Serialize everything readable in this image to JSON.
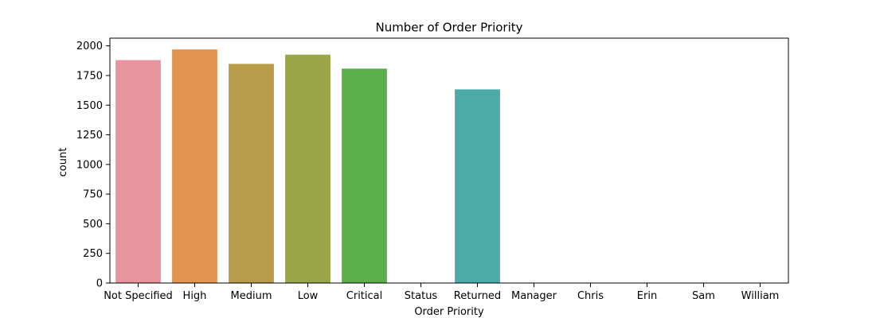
{
  "chart_data": {
    "type": "bar",
    "title": "Number of Order Priority",
    "xlabel": "Order Priority",
    "ylabel": "count",
    "categories": [
      "Not Specified",
      "High",
      "Medium",
      "Low",
      "Critical",
      "Status",
      "Returned",
      "Manager",
      "Chris",
      "Erin",
      "Sam",
      "William"
    ],
    "values": [
      1880,
      1970,
      1848,
      1926,
      1808,
      0,
      1633,
      0,
      0,
      0,
      0,
      0
    ],
    "ylim": [
      0,
      2065
    ],
    "yticks": [
      0,
      250,
      500,
      750,
      1000,
      1250,
      1500,
      1750,
      2000
    ],
    "grid": false,
    "colors": [
      "#e8949f",
      "#e29451",
      "#b89c4a",
      "#9aa647",
      "#5caf4b",
      "#55ad90",
      "#4aaba7",
      "#52a7c5",
      "#7aa0e6",
      "#b497e6",
      "#e28ae0",
      "#e98dc3"
    ]
  }
}
